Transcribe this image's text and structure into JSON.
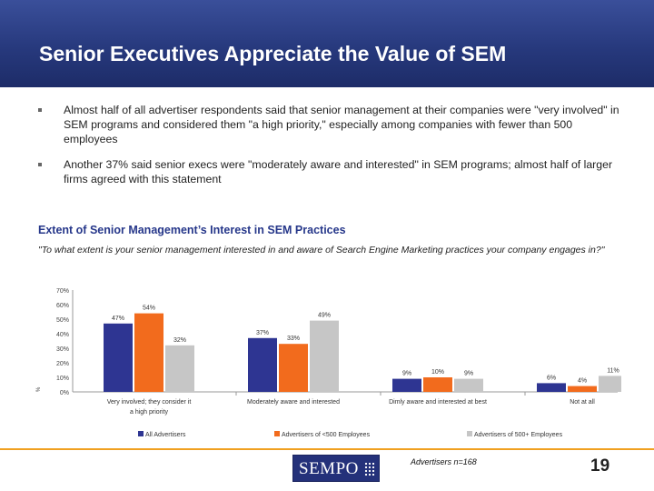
{
  "header": {
    "title": "Senior Executives Appreciate the Value of SEM"
  },
  "bullets": [
    "Almost half of all advertiser respondents said that senior management at their companies were \"very involved\" in SEM programs and considered them \"a high priority,\" especially among companies with fewer than 500 employees",
    "Another 37% said senior execs were \"moderately aware and interested\" in SEM programs; almost half of larger firms agreed with this statement"
  ],
  "chart_title": "Extent of Senior Management’s Interest in SEM Practices",
  "question": "\"To what extent is your senior management interested in and aware of Search Engine Marketing practices your company engages in?\"",
  "footer": {
    "logo_text": "SEMPO",
    "source": "Advertisers n=168",
    "page_number": "19"
  },
  "colors": {
    "all": "#2e3592",
    "small": "#f26b1d",
    "large": "#c6c6c6",
    "header": "#27397d",
    "accent": "#f0a020"
  },
  "chart_data": {
    "type": "bar",
    "title": "Extent of Senior Management’s Interest in SEM Practices",
    "ylabel": "%",
    "ylim": [
      0,
      70
    ],
    "yticks": [
      "0%",
      "10%",
      "20%",
      "30%",
      "40%",
      "50%",
      "60%",
      "70%"
    ],
    "grid": false,
    "legend_position": "bottom",
    "categories": [
      [
        "Very involved; they consider it",
        "a high priority"
      ],
      [
        "Moderately aware and interested"
      ],
      [
        "Dimly aware and interested at best"
      ],
      [
        "Not at all"
      ]
    ],
    "series": [
      {
        "name": "All Advertisers",
        "color": "#2e3592",
        "values": [
          47,
          37,
          9,
          6
        ],
        "labels": [
          "47%",
          "37%",
          "9%",
          "6%"
        ]
      },
      {
        "name": "Advertisers of <500 Employees",
        "color": "#f26b1d",
        "values": [
          54,
          33,
          10,
          4
        ],
        "labels": [
          "54%",
          "33%",
          "10%",
          "4%"
        ]
      },
      {
        "name": "Advertisers of 500+ Employees",
        "color": "#c6c6c6",
        "values": [
          32,
          49,
          9,
          11
        ],
        "labels": [
          "32%",
          "49%",
          "9%",
          "11%"
        ]
      }
    ]
  }
}
